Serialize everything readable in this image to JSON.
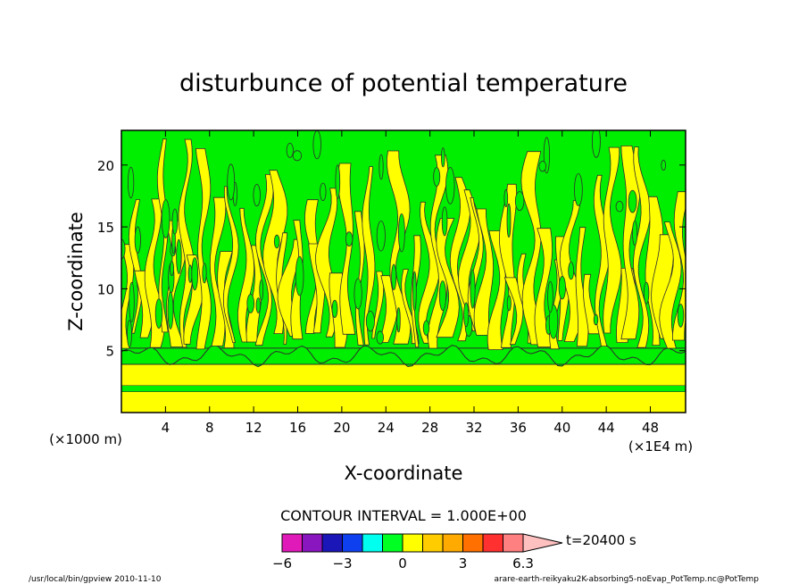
{
  "chart_data": {
    "type": "heatmap",
    "title": "disturbunce of potential temperature",
    "xlabel": "X-coordinate",
    "ylabel": "Z-coordinate",
    "x_unit": "(×1E4 m)",
    "y_unit": "(×1000 m)",
    "xlim": [
      0,
      51.2
    ],
    "ylim": [
      0,
      22.8
    ],
    "x_ticks": [
      4,
      8,
      12,
      16,
      20,
      24,
      28,
      32,
      36,
      40,
      44,
      48
    ],
    "y_ticks": [
      5,
      10,
      15,
      20
    ],
    "grid": false,
    "contour_interval_text": "CONTOUR INTERVAL = 1.000E+00",
    "time_label": "t=20400 s",
    "colorbar": {
      "levels": [
        -6,
        -5,
        -4,
        -3,
        -2,
        -1,
        0,
        1,
        2,
        3,
        4,
        5,
        6.3
      ],
      "tick_labels": [
        "−6",
        "−3",
        "0",
        "3",
        "6.3"
      ],
      "tick_values": [
        -6,
        -3,
        0,
        3,
        6.3
      ],
      "colors": [
        "#e01ab8",
        "#8a16c0",
        "#1a16b8",
        "#0f40f0",
        "#00ffee",
        "#00ff22",
        "#ffff00",
        "#ffcc00",
        "#ffaa00",
        "#ff7000",
        "#ff3030",
        "#ff8080",
        "#ffc0c0"
      ]
    },
    "field_colors": {
      "yellow": "#ffff00",
      "green": "#00ee00",
      "contour": "#2e2e2e"
    },
    "bands": [
      {
        "z_from": 0,
        "z_to": 1.7,
        "level_bin": "0..1"
      },
      {
        "z_from": 1.7,
        "z_to": 2.2,
        "level_bin": "-1..0"
      },
      {
        "z_from": 2.2,
        "z_to": 3.9,
        "level_bin": "0..1"
      },
      {
        "z_from": 3.9,
        "z_to": 5.2,
        "level_bin": "-1..0"
      },
      {
        "z_from": 5.2,
        "z_to": 22.8,
        "level_bin": "mixed -1..1 vertical plumes"
      }
    ]
  },
  "footer": {
    "left": "/usr/local/bin/gpview   2010-11-10",
    "right": "arare-earth-reikyaku2K-absorbing5-noEvap_PotTemp.nc@PotTemp"
  }
}
